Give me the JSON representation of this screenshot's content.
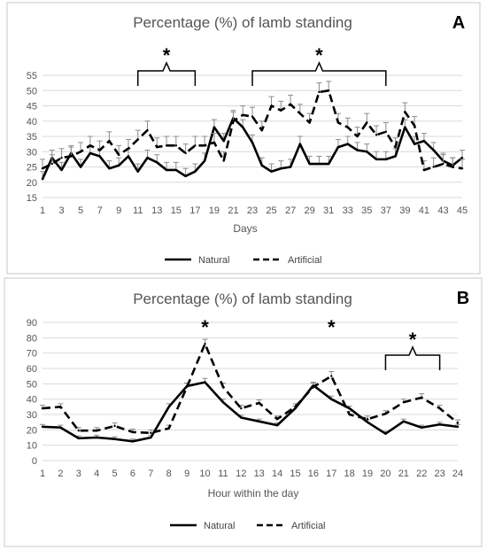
{
  "chart_data": [
    {
      "panel": "A",
      "type": "line",
      "title": "Percentage (%) of lamb standing",
      "xlabel": "Days",
      "ylabel": "",
      "ylim": [
        15,
        55
      ],
      "yticks": [
        15,
        20,
        25,
        30,
        35,
        40,
        45,
        50,
        55
      ],
      "xlim": [
        1,
        45
      ],
      "xticks": [
        1,
        3,
        5,
        7,
        9,
        11,
        13,
        15,
        17,
        19,
        21,
        23,
        25,
        27,
        29,
        31,
        33,
        35,
        37,
        39,
        41,
        43,
        45
      ],
      "grid": "horizontal",
      "legend": "bottom",
      "significance_marker": "*",
      "significance_brackets": [
        [
          11,
          17
        ],
        [
          23,
          37
        ]
      ],
      "series": [
        {
          "name": "Natural",
          "line_style": "solid",
          "color": "#000000",
          "x": [
            1,
            2,
            3,
            4,
            5,
            6,
            7,
            8,
            9,
            10,
            11,
            12,
            13,
            14,
            15,
            16,
            17,
            18,
            19,
            20,
            21,
            22,
            23,
            24,
            25,
            26,
            27,
            28,
            29,
            30,
            31,
            32,
            33,
            34,
            35,
            36,
            37,
            38,
            39,
            40,
            41,
            42,
            43,
            44,
            45
          ],
          "values": [
            21.0,
            28.0,
            24.0,
            29.5,
            25.0,
            29.5,
            28.5,
            24.5,
            25.5,
            28.5,
            23.5,
            28.0,
            26.5,
            24.0,
            24.0,
            22.0,
            23.5,
            27.0,
            38.0,
            33.5,
            41.0,
            38.0,
            33.0,
            25.5,
            23.5,
            24.5,
            25.0,
            32.5,
            26.0,
            26.0,
            26.0,
            31.5,
            32.5,
            30.5,
            30.0,
            27.5,
            27.5,
            28.5,
            38.0,
            32.5,
            33.5,
            30.5,
            27.0,
            25.5,
            28.0
          ],
          "error": [
            2.5,
            2.5,
            2.5,
            2.5,
            2.5,
            2.5,
            2.5,
            2.5,
            2.5,
            2.5,
            2.5,
            2.5,
            2.5,
            2.5,
            2.5,
            2.5,
            2.5,
            2.5,
            2.5,
            2.5,
            2.5,
            2.5,
            2.5,
            2.5,
            2.5,
            2.5,
            2.5,
            2.5,
            2.5,
            2.5,
            2.5,
            2.5,
            2.5,
            2.5,
            2.5,
            2.5,
            2.5,
            2.5,
            2.5,
            2.5,
            2.5,
            2.5,
            2.5,
            2.5,
            2.5
          ]
        },
        {
          "name": "Artificial",
          "line_style": "dashed",
          "color": "#000000",
          "x": [
            1,
            2,
            3,
            4,
            5,
            6,
            7,
            8,
            9,
            10,
            11,
            12,
            13,
            14,
            15,
            16,
            17,
            18,
            19,
            20,
            21,
            22,
            23,
            24,
            25,
            26,
            27,
            28,
            29,
            30,
            31,
            32,
            33,
            34,
            35,
            36,
            37,
            38,
            39,
            40,
            41,
            42,
            43,
            44,
            45
          ],
          "values": [
            24.5,
            26.0,
            28.0,
            28.5,
            30.0,
            32.0,
            30.5,
            33.5,
            29.0,
            31.0,
            34.0,
            37.0,
            31.5,
            32.0,
            32.0,
            29.5,
            32.0,
            32.0,
            33.0,
            27.0,
            40.0,
            42.0,
            41.5,
            37.0,
            45.0,
            43.5,
            45.5,
            42.5,
            39.5,
            49.5,
            50.0,
            39.5,
            38.0,
            35.0,
            39.5,
            35.5,
            36.5,
            31.5,
            43.0,
            38.5,
            24.0,
            25.0,
            26.0,
            25.0,
            24.5
          ],
          "error": [
            3.0,
            3.0,
            3.0,
            3.0,
            3.0,
            3.0,
            3.0,
            3.0,
            3.0,
            3.0,
            3.0,
            3.0,
            3.0,
            3.0,
            3.0,
            3.0,
            3.0,
            3.0,
            3.0,
            3.0,
            3.0,
            3.0,
            3.0,
            3.0,
            3.0,
            3.0,
            3.0,
            3.0,
            3.0,
            3.0,
            3.0,
            3.0,
            3.0,
            3.0,
            3.0,
            3.0,
            3.0,
            3.0,
            3.0,
            3.0,
            3.0,
            3.0,
            3.0,
            3.0,
            3.0
          ]
        }
      ]
    },
    {
      "panel": "B",
      "type": "line",
      "title": "Percentage (%) of lamb standing",
      "xlabel": "Hour within the day",
      "ylabel": "",
      "ylim": [
        0,
        90
      ],
      "yticks": [
        0,
        10,
        20,
        30,
        40,
        50,
        60,
        70,
        80,
        90
      ],
      "xlim": [
        1,
        24
      ],
      "xticks": [
        1,
        2,
        3,
        4,
        5,
        6,
        7,
        8,
        9,
        10,
        11,
        12,
        13,
        14,
        15,
        16,
        17,
        18,
        19,
        20,
        21,
        22,
        23,
        24
      ],
      "grid": "horizontal",
      "legend": "bottom",
      "significance_marker": "*",
      "significance_points": [
        10,
        17
      ],
      "significance_brackets": [
        [
          20,
          23
        ]
      ],
      "series": [
        {
          "name": "Natural",
          "line_style": "solid",
          "color": "#000000",
          "x": [
            1,
            2,
            3,
            4,
            5,
            6,
            7,
            8,
            9,
            10,
            11,
            12,
            13,
            14,
            15,
            16,
            17,
            18,
            19,
            20,
            21,
            22,
            23,
            24
          ],
          "values": [
            22.0,
            21.5,
            14.5,
            15.0,
            14.0,
            12.5,
            15.0,
            35.0,
            48.5,
            51.0,
            38.0,
            28.0,
            25.5,
            23.0,
            34.0,
            49.0,
            40.0,
            34.0,
            25.0,
            17.5,
            25.5,
            21.5,
            23.5,
            22.0
          ],
          "error": [
            1.5,
            1.5,
            1.5,
            1.5,
            1.5,
            1.5,
            1.5,
            2.0,
            2.0,
            2.5,
            2.0,
            1.5,
            1.5,
            1.5,
            1.5,
            2.0,
            2.0,
            1.5,
            1.5,
            1.5,
            1.5,
            1.5,
            1.5,
            1.5
          ]
        },
        {
          "name": "Artificial",
          "line_style": "dashed",
          "color": "#000000",
          "x": [
            1,
            2,
            3,
            4,
            5,
            6,
            7,
            8,
            9,
            10,
            11,
            12,
            13,
            14,
            15,
            16,
            17,
            18,
            19,
            20,
            21,
            22,
            23,
            24
          ],
          "values": [
            34.0,
            35.0,
            19.5,
            19.5,
            22.5,
            18.5,
            18.0,
            21.0,
            48.0,
            76.0,
            48.0,
            34.0,
            37.5,
            27.0,
            35.0,
            48.0,
            55.0,
            30.0,
            27.0,
            30.5,
            38.0,
            41.0,
            34.0,
            24.5
          ],
          "error": [
            2.0,
            2.0,
            2.0,
            2.0,
            2.0,
            2.0,
            2.0,
            2.0,
            2.5,
            3.0,
            2.5,
            2.0,
            2.0,
            2.0,
            2.0,
            2.5,
            3.0,
            2.0,
            2.0,
            2.0,
            2.0,
            2.5,
            2.0,
            2.0
          ]
        }
      ]
    }
  ]
}
